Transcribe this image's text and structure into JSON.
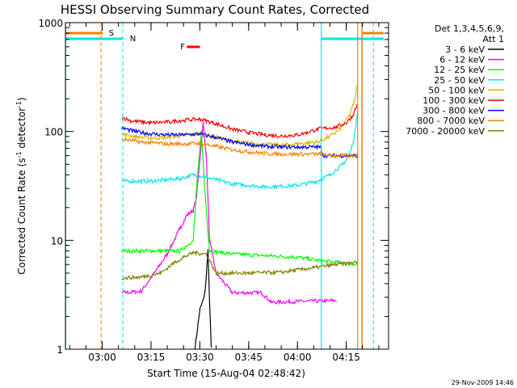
{
  "chart_data": {
    "type": "line",
    "title": "HESSI Observing Summary Count Rates, Corrected",
    "xlabel": "Start Time (15-Aug-04 02:48:42)",
    "ylabel_main": "Corrected Count Rate (s",
    "ylabel_sup1": "-1",
    "ylabel_mid": " detector",
    "ylabel_sup2": "-1",
    "ylabel_end": ")",
    "yscale": "log",
    "ylim": [
      1,
      1000
    ],
    "y_ticks": [
      {
        "value": 1,
        "label": "1"
      },
      {
        "value": 10,
        "label": "10"
      },
      {
        "value": 100,
        "label": "100"
      },
      {
        "value": 1000,
        "label": "1000"
      }
    ],
    "xlim": [
      "02:48:42",
      "04:28:00"
    ],
    "x_ticks": [
      "03:00",
      "03:15",
      "03:30",
      "03:45",
      "04:00",
      "04:15"
    ],
    "legend": {
      "placement": "right",
      "header1": "Det 1,3,4,5,6,9,",
      "header2": "Att 1"
    },
    "flags": [
      {
        "label": "S",
        "color": "#ff7f00"
      },
      {
        "label": "N",
        "color": "#00e5ee"
      },
      {
        "label": "F",
        "color": "#ff0000"
      }
    ],
    "footer_date": "29-Nov-2009 14:46",
    "series": [
      {
        "name": "3 - 6 keV",
        "color": "#000000",
        "points": [
          [
            "03:28:30",
            1
          ],
          [
            "03:30:00",
            2.3
          ],
          [
            "03:31:00",
            2.8
          ],
          [
            "03:31:40",
            3.5
          ],
          [
            "03:32:30",
            8
          ],
          [
            "03:33:30",
            1
          ]
        ]
      },
      {
        "name": "6 - 12 keV",
        "color": "#ff00ff",
        "points": [
          [
            "03:06:00",
            3.3
          ],
          [
            "03:12:00",
            3.4
          ],
          [
            "03:16:00",
            5
          ],
          [
            "03:20:00",
            7.5
          ],
          [
            "03:24:00",
            13
          ],
          [
            "03:26:00",
            17
          ],
          [
            "03:28:00",
            19
          ],
          [
            "03:29:00",
            25
          ],
          [
            "03:30:00",
            55
          ],
          [
            "03:31:00",
            120
          ],
          [
            "03:32:00",
            60
          ],
          [
            "03:33:00",
            10
          ],
          [
            "03:35:00",
            5
          ],
          [
            "03:40:00",
            3.3
          ],
          [
            "03:49:00",
            3.3
          ],
          [
            "03:52:00",
            2.7
          ],
          [
            "04:12:00",
            2.8
          ]
        ]
      },
      {
        "name": "12 - 25 keV",
        "color": "#00ff00",
        "points": [
          [
            "03:06:00",
            8
          ],
          [
            "03:15:00",
            8
          ],
          [
            "03:24:00",
            8
          ],
          [
            "03:28:00",
            10
          ],
          [
            "03:29:00",
            30
          ],
          [
            "03:30:30",
            100
          ],
          [
            "03:31:30",
            30
          ],
          [
            "03:33:00",
            8
          ],
          [
            "03:40:00",
            7.5
          ],
          [
            "04:00:00",
            7
          ],
          [
            "04:07:00",
            6.5
          ],
          [
            "04:18:30",
            6
          ]
        ]
      },
      {
        "name": "25 - 50 keV",
        "color": "#00e5ee",
        "points": [
          [
            "03:06:00",
            35
          ],
          [
            "03:15:00",
            35
          ],
          [
            "03:24:00",
            37
          ],
          [
            "03:28:00",
            40
          ],
          [
            "03:32:00",
            38
          ],
          [
            "03:40:00",
            33
          ],
          [
            "03:50:00",
            31
          ],
          [
            "04:00:00",
            32
          ],
          [
            "04:06:00",
            35
          ],
          [
            "04:10:00",
            40
          ],
          [
            "04:14:00",
            50
          ],
          [
            "04:16:00",
            60
          ],
          [
            "04:17:30",
            90
          ],
          [
            "04:18:30",
            160
          ]
        ]
      },
      {
        "name": "50 - 100 keV",
        "color": "#d4b800",
        "points": [
          [
            "03:06:00",
            95
          ],
          [
            "03:10:00",
            90
          ],
          [
            "03:15:00",
            87
          ],
          [
            "03:20:00",
            88
          ],
          [
            "03:25:00",
            92
          ],
          [
            "03:30:00",
            95
          ],
          [
            "03:35:00",
            88
          ],
          [
            "03:40:00",
            82
          ],
          [
            "03:45:00",
            78
          ],
          [
            "03:50:00",
            76
          ],
          [
            "03:55:00",
            75
          ],
          [
            "04:00:00",
            77
          ],
          [
            "04:06:00",
            80
          ],
          [
            "04:10:00",
            90
          ],
          [
            "04:13:00",
            105
          ],
          [
            "04:16:00",
            140
          ],
          [
            "04:17:30",
            190
          ],
          [
            "04:18:30",
            270
          ]
        ]
      },
      {
        "name": "100 - 300 keV",
        "color": "#ff0000",
        "points": [
          [
            "03:06:00",
            135
          ],
          [
            "03:09:00",
            125
          ],
          [
            "03:15:00",
            120
          ],
          [
            "03:20:00",
            122
          ],
          [
            "03:25:00",
            127
          ],
          [
            "03:30:00",
            130
          ],
          [
            "03:35:00",
            118
          ],
          [
            "03:40:00",
            105
          ],
          [
            "03:45:00",
            98
          ],
          [
            "03:50:00",
            93
          ],
          [
            "03:55:00",
            91
          ],
          [
            "04:00:00",
            93
          ],
          [
            "04:03:00",
            98
          ],
          [
            "04:06:00",
            105
          ],
          [
            "04:12:00",
            110
          ],
          [
            "04:15:00",
            120
          ],
          [
            "04:17:00",
            140
          ],
          [
            "04:18:30",
            180
          ]
        ]
      },
      {
        "name": "300 - 800 keV",
        "color": "#0000ff",
        "points": [
          [
            "03:06:00",
            108
          ],
          [
            "03:10:00",
            100
          ],
          [
            "03:15:00",
            95
          ],
          [
            "03:20:00",
            93
          ],
          [
            "03:25:00",
            93
          ],
          [
            "03:30:00",
            95
          ],
          [
            "03:35:00",
            88
          ],
          [
            "03:40:00",
            80
          ],
          [
            "03:45:00",
            76
          ],
          [
            "03:50:00",
            73
          ],
          [
            "03:55:00",
            72
          ],
          [
            "04:00:00",
            72
          ],
          [
            "04:07:00",
            72
          ],
          [
            "04:08:00",
            60
          ],
          [
            "04:18:30",
            60
          ]
        ]
      },
      {
        "name": "800 - 7000 keV",
        "color": "#ff7f00",
        "points": [
          [
            "03:06:00",
            85
          ],
          [
            "03:12:00",
            80
          ],
          [
            "03:20:00",
            77
          ],
          [
            "03:26:00",
            77
          ],
          [
            "03:30:00",
            78
          ],
          [
            "03:35:00",
            73
          ],
          [
            "03:40:00",
            68
          ],
          [
            "03:45:00",
            65
          ],
          [
            "03:50:00",
            63
          ],
          [
            "03:55:00",
            62
          ],
          [
            "04:00:00",
            62
          ],
          [
            "04:07:00",
            62
          ],
          [
            "04:10:00",
            60
          ],
          [
            "04:18:30",
            60
          ]
        ]
      },
      {
        "name": "7000 - 20000 keV",
        "color": "#808000",
        "points": [
          [
            "03:06:00",
            4.5
          ],
          [
            "03:12:00",
            4.6
          ],
          [
            "03:18:00",
            5
          ],
          [
            "03:22:00",
            6.2
          ],
          [
            "03:25:00",
            7
          ],
          [
            "03:28:00",
            7.7
          ],
          [
            "03:32:00",
            7.5
          ],
          [
            "03:35:00",
            5
          ],
          [
            "03:45:00",
            5
          ],
          [
            "03:55:00",
            5.1
          ],
          [
            "04:05:00",
            5.6
          ],
          [
            "04:12:00",
            6
          ],
          [
            "04:18:30",
            6.3
          ]
        ]
      }
    ]
  }
}
